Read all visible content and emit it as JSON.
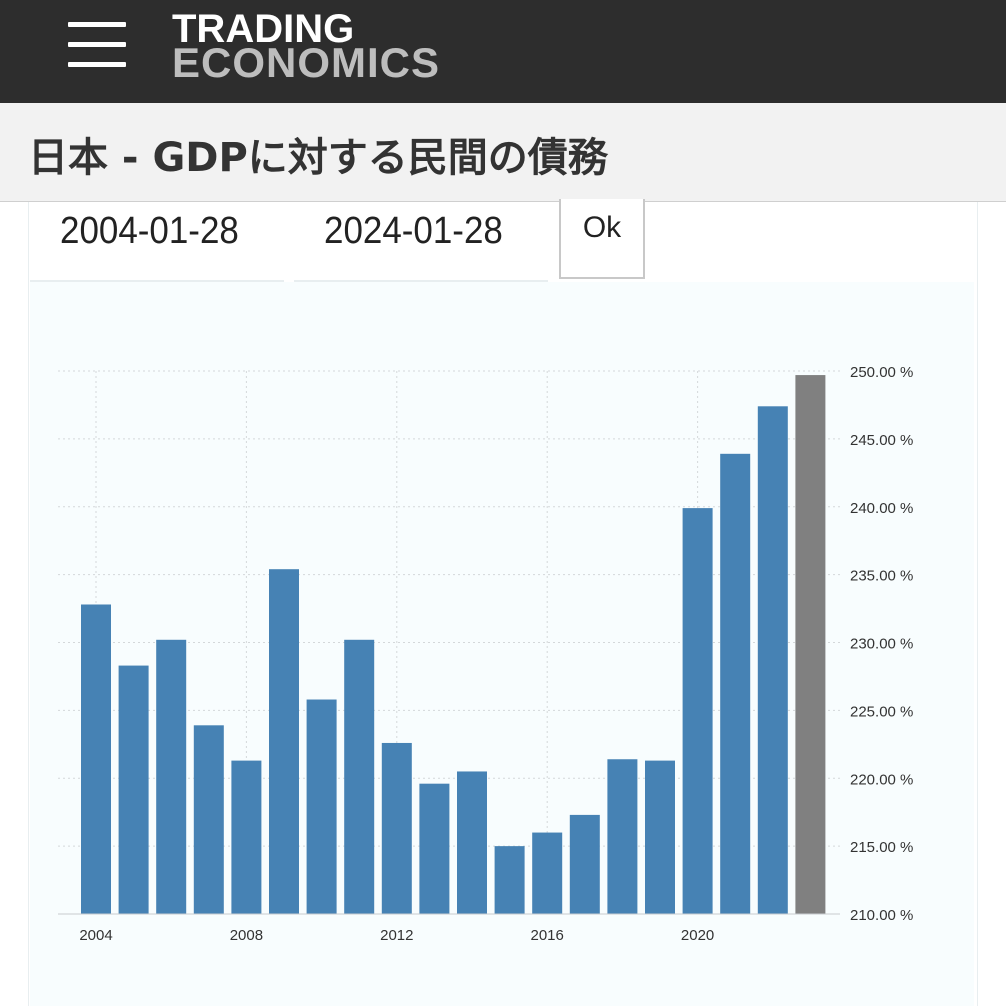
{
  "header": {
    "logo_line1": "TRADING",
    "logo_line2": "ECONOMICS"
  },
  "page": {
    "title": "日本 - GDPに対する民間の債務"
  },
  "date_range": {
    "start": "2004-01-28",
    "end": "2024-01-28",
    "ok_label": "Ok"
  },
  "colors": {
    "bar": "#4682b4",
    "bar_forecast": "#808080",
    "header_bg": "#2d2d2d"
  },
  "chart_data": {
    "type": "bar",
    "title": "",
    "xlabel": "",
    "ylabel": "",
    "x": [
      2004,
      2005,
      2006,
      2007,
      2008,
      2009,
      2010,
      2011,
      2012,
      2013,
      2014,
      2015,
      2016,
      2017,
      2018,
      2019,
      2020,
      2021,
      2022,
      2023
    ],
    "values": [
      232.8,
      228.3,
      230.2,
      223.9,
      221.3,
      235.4,
      225.8,
      230.2,
      222.6,
      219.6,
      220.5,
      215.0,
      216.0,
      217.3,
      221.4,
      221.3,
      239.9,
      243.9,
      247.4,
      249.7
    ],
    "last_bar_highlighted": true,
    "ylim": [
      210,
      250
    ],
    "y_ticks": [
      "250.00 %",
      "245.00 %",
      "240.00 %",
      "235.00 %",
      "230.00 %",
      "225.00 %",
      "220.00 %",
      "215.00 %",
      "210.00 %"
    ],
    "y_tick_values": [
      250,
      245,
      240,
      235,
      230,
      225,
      220,
      215,
      210
    ],
    "x_ticks": [
      "2004",
      "2008",
      "2012",
      "2016",
      "2020"
    ],
    "x_tick_values": [
      2004,
      2008,
      2012,
      2016,
      2020
    ],
    "y_axis_side": "right",
    "grid": true
  }
}
